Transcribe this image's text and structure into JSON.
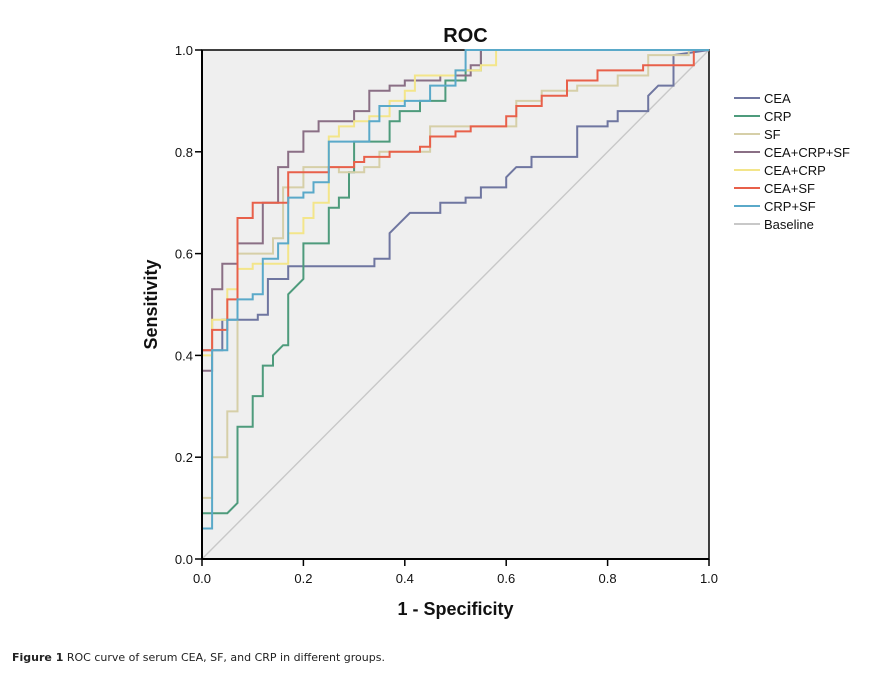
{
  "chart_data": {
    "type": "line",
    "title": "ROC",
    "xlabel": "1 - Specificity",
    "ylabel": "Sensitivity",
    "xlim": [
      0,
      1
    ],
    "ylim": [
      0,
      1
    ],
    "xticks": [
      "0.0",
      "0.2",
      "0.4",
      "0.6",
      "0.8",
      "1.0"
    ],
    "yticks": [
      "0.0",
      "0.2",
      "0.4",
      "0.6",
      "0.8",
      "1.0"
    ],
    "grid": false,
    "legend_position": "right",
    "series": [
      {
        "name": "CEA",
        "color": "#6f76a0",
        "points": [
          [
            0,
            0
          ],
          [
            0,
            0.41
          ],
          [
            0.04,
            0.41
          ],
          [
            0.04,
            0.47
          ],
          [
            0.11,
            0.47
          ],
          [
            0.11,
            0.48
          ],
          [
            0.13,
            0.48
          ],
          [
            0.13,
            0.55
          ],
          [
            0.17,
            0.55
          ],
          [
            0.17,
            0.575
          ],
          [
            0.34,
            0.575
          ],
          [
            0.34,
            0.59
          ],
          [
            0.37,
            0.59
          ],
          [
            0.37,
            0.64
          ],
          [
            0.39,
            0.66
          ],
          [
            0.41,
            0.68
          ],
          [
            0.47,
            0.68
          ],
          [
            0.47,
            0.7
          ],
          [
            0.52,
            0.7
          ],
          [
            0.52,
            0.71
          ],
          [
            0.55,
            0.71
          ],
          [
            0.55,
            0.73
          ],
          [
            0.6,
            0.73
          ],
          [
            0.6,
            0.75
          ],
          [
            0.62,
            0.77
          ],
          [
            0.65,
            0.77
          ],
          [
            0.65,
            0.79
          ],
          [
            0.74,
            0.79
          ],
          [
            0.74,
            0.85
          ],
          [
            0.8,
            0.85
          ],
          [
            0.8,
            0.86
          ],
          [
            0.82,
            0.86
          ],
          [
            0.82,
            0.88
          ],
          [
            0.88,
            0.88
          ],
          [
            0.88,
            0.91
          ],
          [
            0.9,
            0.93
          ],
          [
            0.93,
            0.93
          ],
          [
            0.93,
            0.99
          ],
          [
            1,
            1
          ]
        ]
      },
      {
        "name": "CRP",
        "color": "#4e9b7c",
        "points": [
          [
            0,
            0
          ],
          [
            0,
            0.09
          ],
          [
            0.05,
            0.09
          ],
          [
            0.07,
            0.11
          ],
          [
            0.07,
            0.26
          ],
          [
            0.1,
            0.26
          ],
          [
            0.1,
            0.32
          ],
          [
            0.12,
            0.32
          ],
          [
            0.12,
            0.38
          ],
          [
            0.14,
            0.38
          ],
          [
            0.14,
            0.4
          ],
          [
            0.16,
            0.42
          ],
          [
            0.17,
            0.42
          ],
          [
            0.17,
            0.52
          ],
          [
            0.2,
            0.55
          ],
          [
            0.2,
            0.62
          ],
          [
            0.25,
            0.62
          ],
          [
            0.25,
            0.69
          ],
          [
            0.27,
            0.69
          ],
          [
            0.27,
            0.71
          ],
          [
            0.29,
            0.71
          ],
          [
            0.29,
            0.76
          ],
          [
            0.3,
            0.76
          ],
          [
            0.3,
            0.82
          ],
          [
            0.37,
            0.82
          ],
          [
            0.37,
            0.86
          ],
          [
            0.39,
            0.86
          ],
          [
            0.39,
            0.88
          ],
          [
            0.43,
            0.88
          ],
          [
            0.43,
            0.9
          ],
          [
            0.48,
            0.9
          ],
          [
            0.48,
            0.94
          ],
          [
            0.52,
            0.94
          ],
          [
            0.52,
            0.96
          ],
          [
            0.55,
            0.96
          ],
          [
            0.55,
            1
          ],
          [
            1,
            1
          ]
        ]
      },
      {
        "name": "SF",
        "color": "#d6cfa8",
        "points": [
          [
            0,
            0
          ],
          [
            0,
            0.12
          ],
          [
            0.02,
            0.12
          ],
          [
            0.02,
            0.2
          ],
          [
            0.05,
            0.2
          ],
          [
            0.05,
            0.29
          ],
          [
            0.07,
            0.29
          ],
          [
            0.07,
            0.6
          ],
          [
            0.14,
            0.6
          ],
          [
            0.14,
            0.63
          ],
          [
            0.16,
            0.63
          ],
          [
            0.16,
            0.73
          ],
          [
            0.2,
            0.73
          ],
          [
            0.2,
            0.77
          ],
          [
            0.27,
            0.77
          ],
          [
            0.27,
            0.76
          ],
          [
            0.32,
            0.76
          ],
          [
            0.32,
            0.77
          ],
          [
            0.35,
            0.77
          ],
          [
            0.35,
            0.8
          ],
          [
            0.45,
            0.8
          ],
          [
            0.45,
            0.85
          ],
          [
            0.62,
            0.85
          ],
          [
            0.62,
            0.9
          ],
          [
            0.67,
            0.9
          ],
          [
            0.67,
            0.92
          ],
          [
            0.74,
            0.92
          ],
          [
            0.74,
            0.93
          ],
          [
            0.82,
            0.93
          ],
          [
            0.82,
            0.95
          ],
          [
            0.88,
            0.95
          ],
          [
            0.88,
            0.99
          ],
          [
            0.96,
            0.99
          ],
          [
            0.96,
            1
          ],
          [
            1,
            1
          ]
        ]
      },
      {
        "name": "CEA+CRP+SF",
        "color": "#8a6f85",
        "points": [
          [
            0,
            0
          ],
          [
            0,
            0.37
          ],
          [
            0.02,
            0.37
          ],
          [
            0.02,
            0.53
          ],
          [
            0.04,
            0.53
          ],
          [
            0.04,
            0.58
          ],
          [
            0.07,
            0.58
          ],
          [
            0.07,
            0.62
          ],
          [
            0.12,
            0.62
          ],
          [
            0.12,
            0.7
          ],
          [
            0.15,
            0.7
          ],
          [
            0.15,
            0.77
          ],
          [
            0.17,
            0.77
          ],
          [
            0.17,
            0.8
          ],
          [
            0.2,
            0.8
          ],
          [
            0.2,
            0.84
          ],
          [
            0.23,
            0.84
          ],
          [
            0.23,
            0.86
          ],
          [
            0.3,
            0.86
          ],
          [
            0.3,
            0.88
          ],
          [
            0.33,
            0.88
          ],
          [
            0.33,
            0.92
          ],
          [
            0.37,
            0.92
          ],
          [
            0.37,
            0.93
          ],
          [
            0.4,
            0.93
          ],
          [
            0.4,
            0.94
          ],
          [
            0.47,
            0.94
          ],
          [
            0.47,
            0.95
          ],
          [
            0.53,
            0.95
          ],
          [
            0.53,
            0.97
          ],
          [
            0.55,
            0.97
          ],
          [
            0.55,
            1
          ],
          [
            1,
            1
          ]
        ]
      },
      {
        "name": "CEA+CRP",
        "color": "#f3e58a",
        "points": [
          [
            0,
            0
          ],
          [
            0,
            0.4
          ],
          [
            0.02,
            0.4
          ],
          [
            0.02,
            0.47
          ],
          [
            0.05,
            0.47
          ],
          [
            0.05,
            0.53
          ],
          [
            0.07,
            0.53
          ],
          [
            0.07,
            0.57
          ],
          [
            0.1,
            0.57
          ],
          [
            0.1,
            0.58
          ],
          [
            0.17,
            0.58
          ],
          [
            0.17,
            0.64
          ],
          [
            0.2,
            0.64
          ],
          [
            0.2,
            0.67
          ],
          [
            0.22,
            0.67
          ],
          [
            0.22,
            0.7
          ],
          [
            0.25,
            0.7
          ],
          [
            0.25,
            0.73
          ],
          [
            0.25,
            0.83
          ],
          [
            0.27,
            0.83
          ],
          [
            0.27,
            0.85
          ],
          [
            0.3,
            0.85
          ],
          [
            0.3,
            0.86
          ],
          [
            0.33,
            0.86
          ],
          [
            0.33,
            0.87
          ],
          [
            0.37,
            0.87
          ],
          [
            0.37,
            0.9
          ],
          [
            0.4,
            0.9
          ],
          [
            0.4,
            0.92
          ],
          [
            0.42,
            0.92
          ],
          [
            0.42,
            0.95
          ],
          [
            0.5,
            0.95
          ],
          [
            0.5,
            0.96
          ],
          [
            0.55,
            0.96
          ],
          [
            0.55,
            0.97
          ],
          [
            0.58,
            0.97
          ],
          [
            0.58,
            1
          ],
          [
            1,
            1
          ]
        ]
      },
      {
        "name": "CEA+SF",
        "color": "#e8604a",
        "points": [
          [
            0,
            0
          ],
          [
            0,
            0.41
          ],
          [
            0.02,
            0.41
          ],
          [
            0.02,
            0.45
          ],
          [
            0.05,
            0.45
          ],
          [
            0.05,
            0.51
          ],
          [
            0.07,
            0.51
          ],
          [
            0.07,
            0.67
          ],
          [
            0.1,
            0.67
          ],
          [
            0.1,
            0.7
          ],
          [
            0.17,
            0.7
          ],
          [
            0.17,
            0.76
          ],
          [
            0.25,
            0.76
          ],
          [
            0.25,
            0.77
          ],
          [
            0.3,
            0.77
          ],
          [
            0.3,
            0.78
          ],
          [
            0.32,
            0.78
          ],
          [
            0.32,
            0.79
          ],
          [
            0.37,
            0.79
          ],
          [
            0.37,
            0.8
          ],
          [
            0.43,
            0.8
          ],
          [
            0.43,
            0.81
          ],
          [
            0.45,
            0.81
          ],
          [
            0.45,
            0.83
          ],
          [
            0.5,
            0.83
          ],
          [
            0.5,
            0.84
          ],
          [
            0.53,
            0.84
          ],
          [
            0.53,
            0.85
          ],
          [
            0.6,
            0.85
          ],
          [
            0.6,
            0.87
          ],
          [
            0.62,
            0.87
          ],
          [
            0.62,
            0.89
          ],
          [
            0.67,
            0.89
          ],
          [
            0.67,
            0.91
          ],
          [
            0.72,
            0.91
          ],
          [
            0.72,
            0.94
          ],
          [
            0.78,
            0.94
          ],
          [
            0.78,
            0.96
          ],
          [
            0.87,
            0.96
          ],
          [
            0.87,
            0.97
          ],
          [
            0.97,
            0.97
          ],
          [
            0.97,
            1
          ],
          [
            1,
            1
          ]
        ]
      },
      {
        "name": "CRP+SF",
        "color": "#5aa9c9",
        "points": [
          [
            0,
            0
          ],
          [
            0,
            0.06
          ],
          [
            0.02,
            0.06
          ],
          [
            0.02,
            0.09
          ],
          [
            0.02,
            0.41
          ],
          [
            0.05,
            0.41
          ],
          [
            0.05,
            0.47
          ],
          [
            0.07,
            0.47
          ],
          [
            0.07,
            0.51
          ],
          [
            0.1,
            0.51
          ],
          [
            0.1,
            0.52
          ],
          [
            0.12,
            0.52
          ],
          [
            0.12,
            0.59
          ],
          [
            0.15,
            0.59
          ],
          [
            0.15,
            0.62
          ],
          [
            0.17,
            0.62
          ],
          [
            0.17,
            0.71
          ],
          [
            0.2,
            0.71
          ],
          [
            0.2,
            0.72
          ],
          [
            0.22,
            0.72
          ],
          [
            0.22,
            0.74
          ],
          [
            0.25,
            0.74
          ],
          [
            0.25,
            0.82
          ],
          [
            0.33,
            0.82
          ],
          [
            0.33,
            0.86
          ],
          [
            0.35,
            0.86
          ],
          [
            0.35,
            0.89
          ],
          [
            0.4,
            0.89
          ],
          [
            0.4,
            0.9
          ],
          [
            0.45,
            0.9
          ],
          [
            0.45,
            0.93
          ],
          [
            0.5,
            0.93
          ],
          [
            0.5,
            0.96
          ],
          [
            0.52,
            0.96
          ],
          [
            0.52,
            1
          ],
          [
            1,
            1
          ]
        ]
      },
      {
        "name": "Baseline",
        "color": "#c8c8c8",
        "points": [
          [
            0,
            0
          ],
          [
            1,
            1
          ]
        ]
      }
    ]
  },
  "caption": {
    "label": "Figure 1",
    "text": " ROC curve of serum CEA, SF, and CRP in different groups."
  }
}
